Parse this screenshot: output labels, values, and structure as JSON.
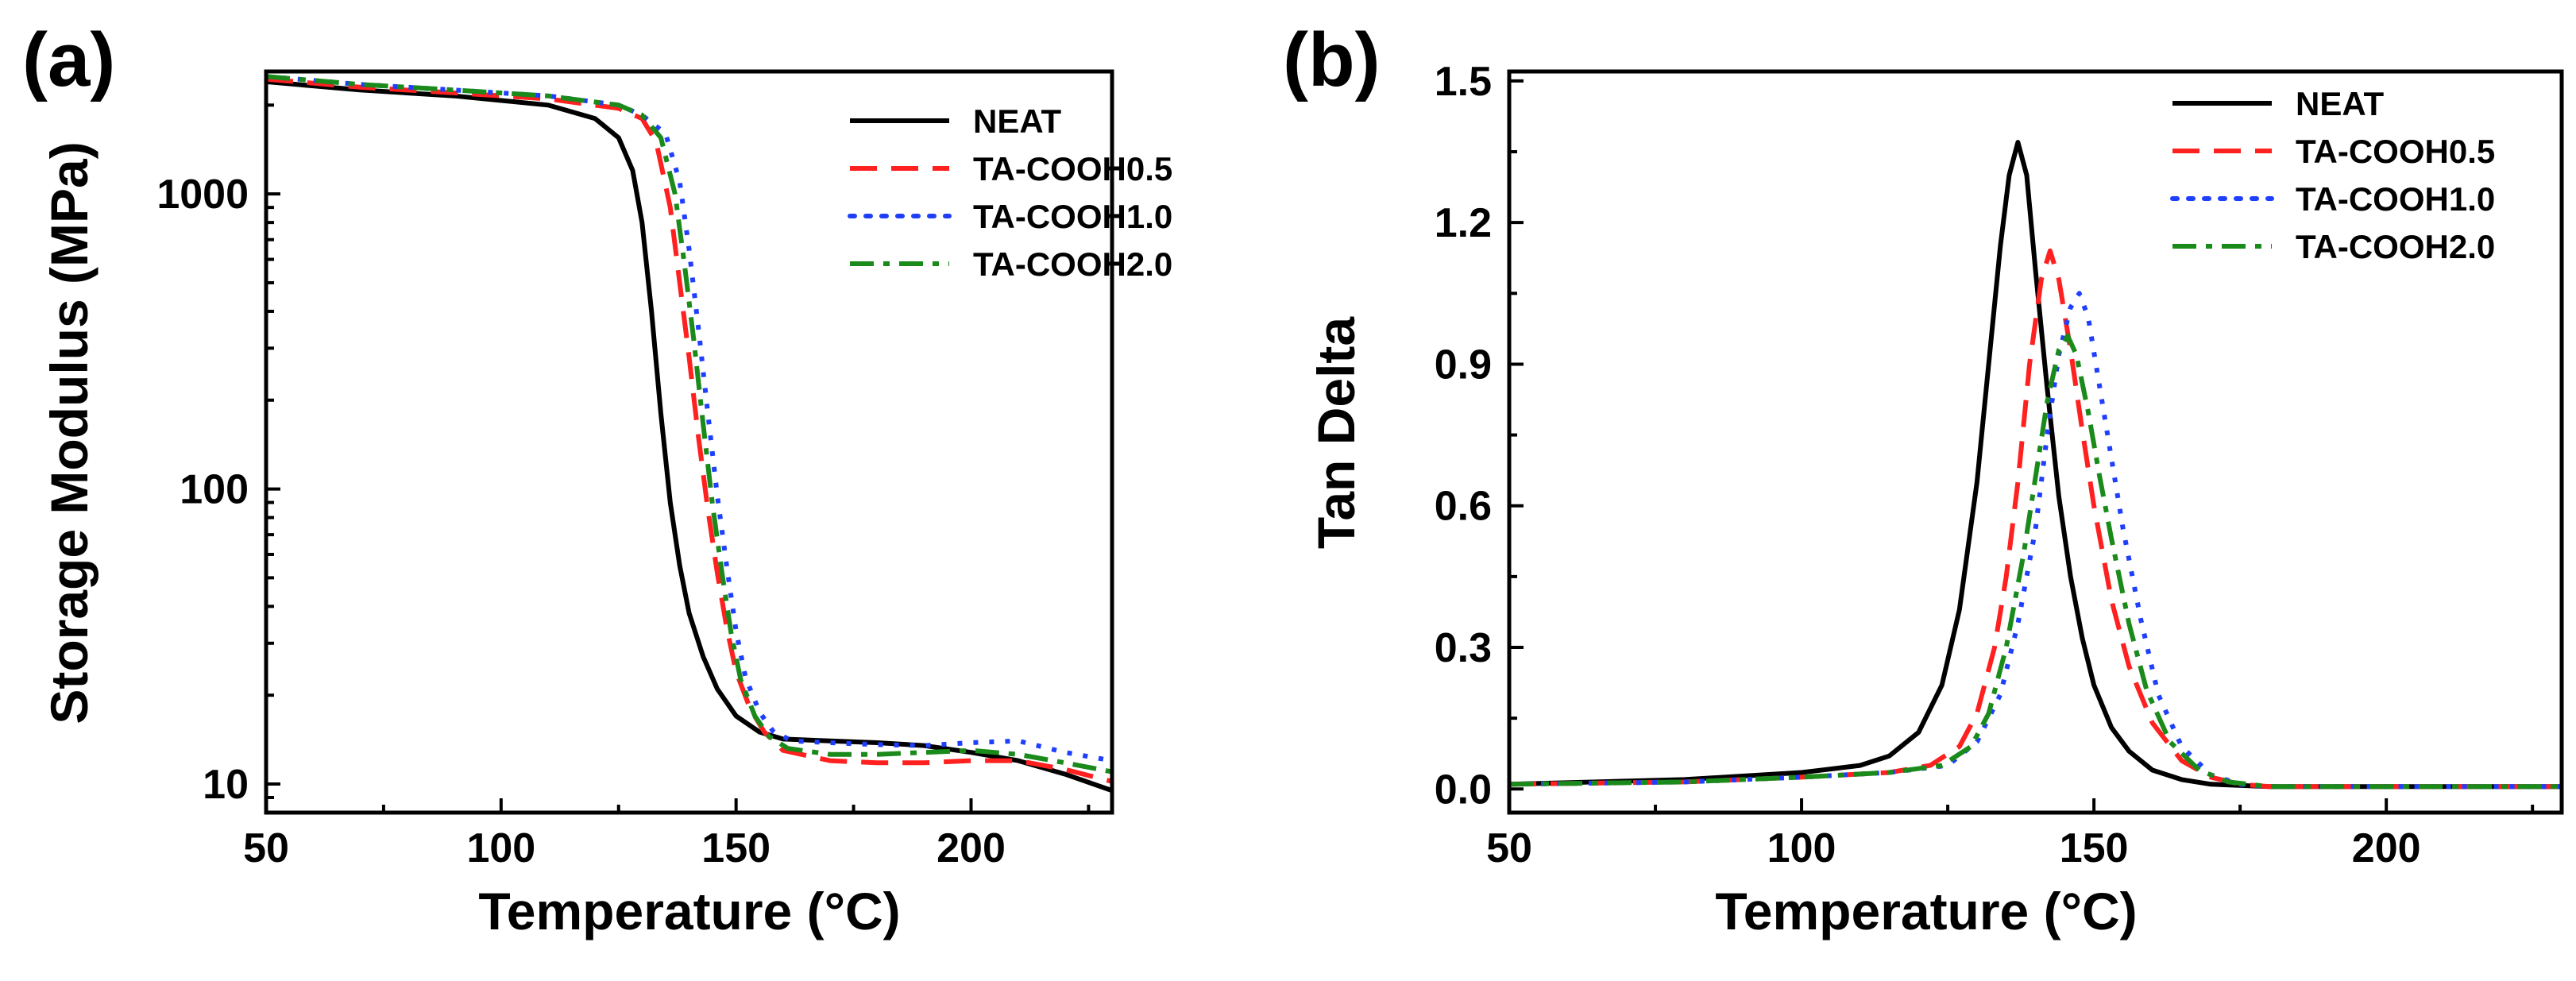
{
  "chart_data": [
    {
      "panel_label": "(a)",
      "type": "line",
      "xlabel": "Temperature (°C)",
      "ylabel": "Storage Modulus (MPa)",
      "xlim": [
        50,
        230
      ],
      "ylim": [
        8,
        2600
      ],
      "yscale": "log",
      "x_ticks": [
        50,
        100,
        150,
        200
      ],
      "x_tick_labels": [
        "50",
        "100",
        "150",
        "200"
      ],
      "y_ticks": [
        10,
        100,
        1000
      ],
      "y_tick_labels": [
        "10",
        "100",
        "1000"
      ],
      "legend_position": "top-right",
      "series": [
        {
          "name": "NEAT",
          "color": "#000000",
          "dash": "solid",
          "x": [
            50,
            70,
            90,
            110,
            120,
            125,
            128,
            130,
            132,
            134,
            136,
            138,
            140,
            143,
            146,
            150,
            155,
            160,
            170,
            180,
            190,
            200,
            210,
            220,
            230
          ],
          "y": [
            2400,
            2250,
            2150,
            2000,
            1800,
            1550,
            1200,
            800,
            400,
            180,
            90,
            55,
            38,
            27,
            21,
            17,
            15,
            14.2,
            14,
            13.8,
            13.5,
            12.8,
            12,
            10.8,
            9.5
          ]
        },
        {
          "name": "TA-COOH0.5",
          "color": "#ff2020",
          "dash": "long-dash",
          "x": [
            50,
            70,
            90,
            110,
            125,
            130,
            133,
            136,
            138,
            140,
            142,
            144,
            146,
            148,
            150,
            153,
            156,
            160,
            170,
            180,
            190,
            200,
            210,
            220,
            230
          ],
          "y": [
            2450,
            2300,
            2200,
            2100,
            1950,
            1800,
            1500,
            900,
            500,
            280,
            150,
            85,
            52,
            34,
            24,
            18,
            15,
            13,
            12,
            11.8,
            11.8,
            12,
            12,
            11.2,
            10.2
          ]
        },
        {
          "name": "TA-COOH1.0",
          "color": "#1f3fff",
          "dash": "dotted",
          "x": [
            50,
            70,
            90,
            110,
            125,
            130,
            135,
            138,
            140,
            142,
            144,
            146,
            148,
            150,
            152,
            155,
            158,
            162,
            170,
            180,
            190,
            200,
            210,
            220,
            230
          ],
          "y": [
            2500,
            2350,
            2250,
            2150,
            2000,
            1850,
            1600,
            1100,
            650,
            350,
            180,
            95,
            55,
            33,
            23,
            17.5,
            15,
            14,
            13.8,
            13.6,
            13.5,
            13.8,
            14,
            12.8,
            12
          ]
        },
        {
          "name": "TA-COOH2.0",
          "color": "#1a8a1a",
          "dash": "dash-dot",
          "x": [
            50,
            70,
            90,
            110,
            125,
            130,
            134,
            137,
            139,
            141,
            143,
            145,
            147,
            149,
            151,
            154,
            157,
            161,
            170,
            180,
            190,
            200,
            210,
            220,
            230
          ],
          "y": [
            2500,
            2350,
            2250,
            2150,
            2000,
            1850,
            1550,
            1000,
            580,
            320,
            165,
            88,
            52,
            32,
            22.5,
            17,
            14.5,
            13.2,
            12.6,
            12.6,
            12.8,
            13,
            12.6,
            11.8,
            11
          ]
        }
      ]
    },
    {
      "panel_label": "(b)",
      "type": "line",
      "xlabel": "Temperature (°C)",
      "ylabel": "Tan Delta",
      "xlim": [
        50,
        230
      ],
      "ylim": [
        -0.05,
        1.52
      ],
      "yscale": "linear",
      "x_ticks": [
        50,
        100,
        150,
        200
      ],
      "x_tick_labels": [
        "50",
        "100",
        "150",
        "200"
      ],
      "y_ticks": [
        0.0,
        0.3,
        0.6,
        0.9,
        1.2,
        1.5
      ],
      "y_tick_labels": [
        "0.0",
        "0.3",
        "0.6",
        "0.9",
        "1.2",
        "1.5"
      ],
      "legend_position": "top-right",
      "series": [
        {
          "name": "NEAT",
          "color": "#000000",
          "dash": "solid",
          "x": [
            50,
            80,
            100,
            110,
            115,
            120,
            124,
            127,
            130,
            132,
            134,
            135.5,
            137,
            138.5,
            140,
            142,
            144,
            146,
            148,
            150,
            153,
            156,
            160,
            165,
            170,
            180,
            200,
            230
          ],
          "y": [
            0.01,
            0.02,
            0.035,
            0.05,
            0.07,
            0.12,
            0.22,
            0.38,
            0.65,
            0.9,
            1.15,
            1.3,
            1.37,
            1.3,
            1.1,
            0.85,
            0.62,
            0.45,
            0.32,
            0.22,
            0.13,
            0.08,
            0.04,
            0.02,
            0.01,
            0.005,
            0.005,
            0.005
          ]
        },
        {
          "name": "TA-COOH0.5",
          "color": "#ff2020",
          "dash": "long-dash",
          "x": [
            50,
            80,
            100,
            115,
            122,
            127,
            130,
            133,
            135,
            137,
            139,
            141,
            142.5,
            144,
            146,
            148,
            150,
            153,
            156,
            160,
            165,
            170,
            175,
            180,
            200,
            230
          ],
          "y": [
            0.01,
            0.015,
            0.025,
            0.035,
            0.05,
            0.09,
            0.16,
            0.3,
            0.45,
            0.65,
            0.9,
            1.08,
            1.14,
            1.08,
            0.93,
            0.76,
            0.6,
            0.4,
            0.26,
            0.14,
            0.06,
            0.025,
            0.01,
            0.005,
            0.005,
            0.005
          ]
        },
        {
          "name": "TA-COOH1.0",
          "color": "#1f3fff",
          "dash": "dotted",
          "x": [
            50,
            80,
            100,
            115,
            125,
            130,
            134,
            137,
            140,
            142,
            144,
            146,
            147.5,
            149,
            151,
            153,
            155,
            158,
            161,
            165,
            170,
            175,
            180,
            200,
            230
          ],
          "y": [
            0.01,
            0.015,
            0.025,
            0.035,
            0.05,
            0.1,
            0.2,
            0.35,
            0.55,
            0.75,
            0.92,
            1.02,
            1.05,
            1.0,
            0.85,
            0.7,
            0.55,
            0.36,
            0.2,
            0.09,
            0.03,
            0.01,
            0.005,
            0.005,
            0.005
          ]
        },
        {
          "name": "TA-COOH2.0",
          "color": "#1a8a1a",
          "dash": "dash-dot",
          "x": [
            50,
            80,
            100,
            115,
            124,
            129,
            132,
            135,
            138,
            140,
            142,
            144,
            145.5,
            147,
            149,
            151,
            153,
            156,
            159,
            163,
            168,
            173,
            180,
            200,
            230
          ],
          "y": [
            0.01,
            0.015,
            0.025,
            0.035,
            0.05,
            0.09,
            0.16,
            0.3,
            0.5,
            0.66,
            0.82,
            0.93,
            0.96,
            0.92,
            0.8,
            0.66,
            0.53,
            0.35,
            0.21,
            0.1,
            0.04,
            0.015,
            0.005,
            0.005,
            0.005
          ]
        }
      ]
    }
  ]
}
